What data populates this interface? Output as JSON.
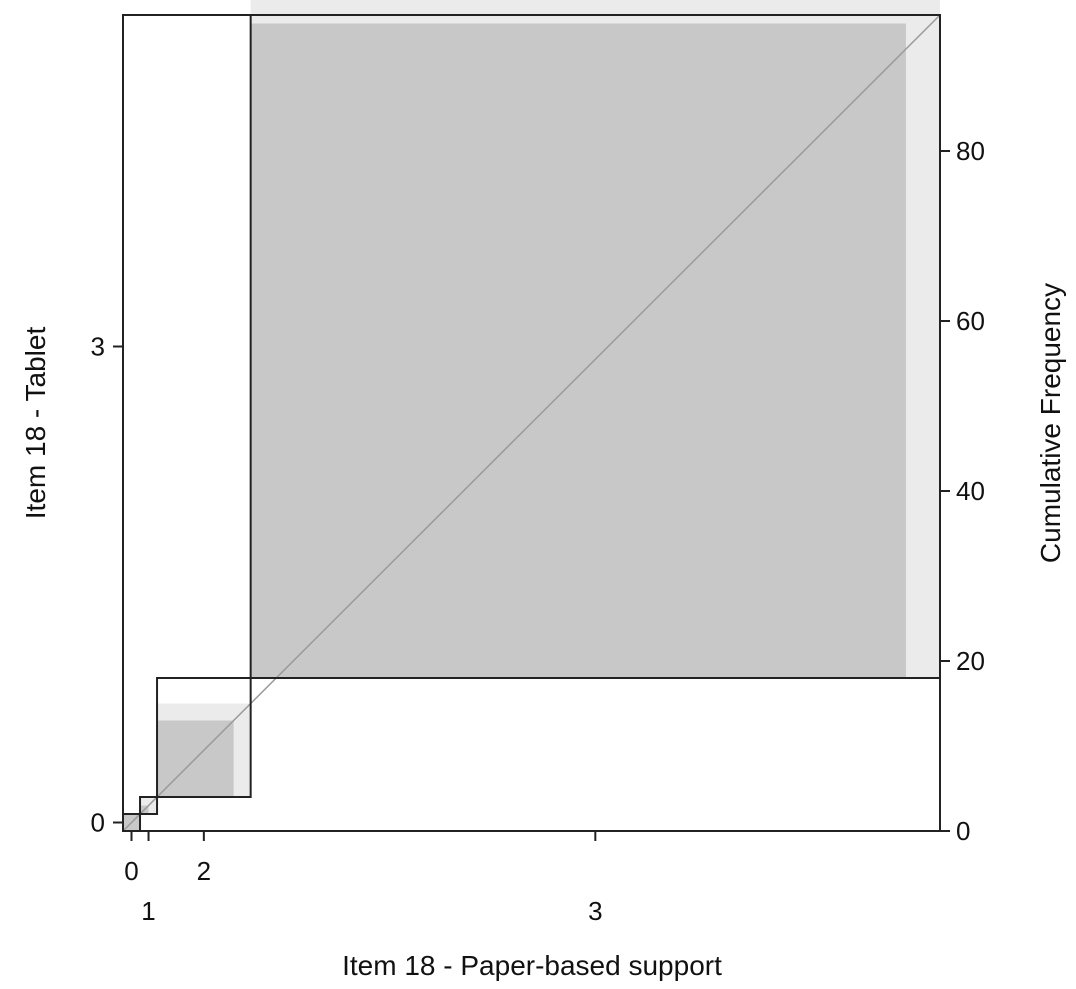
{
  "chart_data": {
    "type": "agreement",
    "title": "",
    "xlabel": "Item 18 - Paper-based support",
    "ylabel": "Item 18 - Tablet",
    "y2label": "Cumulative Frequency",
    "categories": [
      "0",
      "1",
      "2",
      "3"
    ],
    "x_tick_labels": [
      "0",
      "1",
      "2",
      "3"
    ],
    "y_tick_labels": [
      "0",
      "3"
    ],
    "n_total": 96,
    "row_marginals": [
      2,
      2,
      14,
      78
    ],
    "col_marginals": [
      2,
      2,
      11,
      81
    ],
    "agreement_exact": [
      2,
      1,
      9,
      77
    ],
    "agreement_partial": [
      2,
      2,
      11,
      81
    ],
    "cumulative_frequency_axis": {
      "ticks": [
        0,
        20,
        40,
        60,
        80
      ],
      "range": [
        0,
        96
      ]
    },
    "diagonal_reference_line": true,
    "grid": false,
    "legend": "none",
    "colors": {
      "exact": "#c8c8c8",
      "partial": "#ebebeb",
      "outline": "#222222",
      "diagonal": "#9a9a9a"
    }
  }
}
